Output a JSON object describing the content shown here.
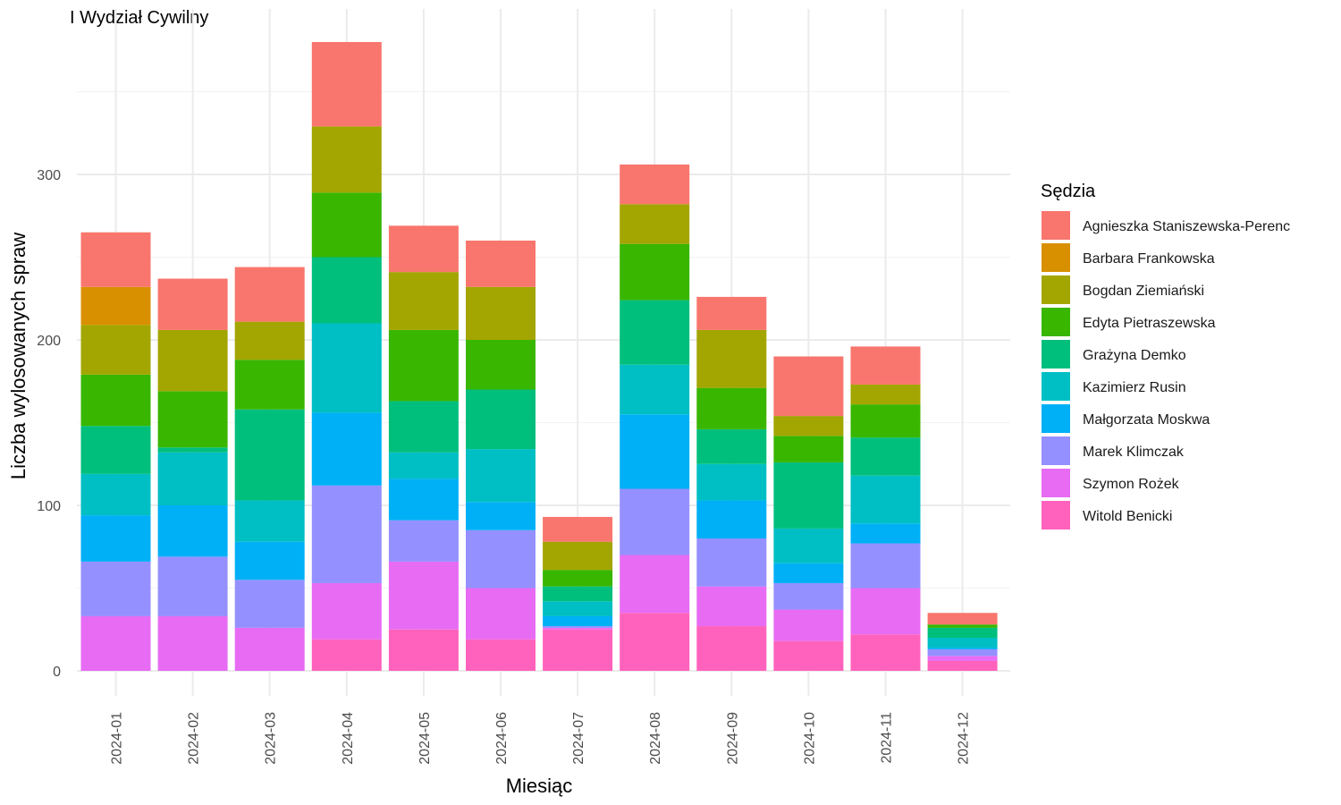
{
  "chart_data": {
    "type": "bar",
    "stacked": true,
    "title": "I Wydział Cywilny",
    "xlabel": "Miesiąc",
    "ylabel": "Liczba wylosowanych spraw",
    "ylim": [
      0,
      380
    ],
    "yticks": [
      0,
      100,
      200,
      300
    ],
    "grid": true,
    "legend": {
      "title": "Sędzia",
      "position": "right"
    },
    "categories": [
      "2024-01",
      "2024-02",
      "2024-03",
      "2024-04",
      "2024-05",
      "2024-06",
      "2024-07",
      "2024-08",
      "2024-09",
      "2024-10",
      "2024-11",
      "2024-12"
    ],
    "series": [
      {
        "name": "Agnieszka Staniszewska-Perenc",
        "color": "#F8766D",
        "values": [
          33,
          31,
          33,
          51,
          28,
          28,
          15,
          24,
          20,
          36,
          23,
          7
        ]
      },
      {
        "name": "Barbara Frankowska",
        "color": "#D89000",
        "values": [
          23,
          0,
          0,
          0,
          0,
          0,
          0,
          0,
          0,
          0,
          0,
          0
        ]
      },
      {
        "name": "Bogdan Ziemiański",
        "color": "#A3A500",
        "values": [
          30,
          37,
          23,
          40,
          35,
          32,
          17,
          24,
          35,
          12,
          12,
          0
        ]
      },
      {
        "name": "Edyta Pietraszewska",
        "color": "#39B600",
        "values": [
          31,
          34,
          30,
          39,
          43,
          30,
          10,
          34,
          25,
          16,
          20,
          2
        ]
      },
      {
        "name": "Grażyna Demko",
        "color": "#00BF7D",
        "values": [
          29,
          3,
          55,
          40,
          31,
          36,
          9,
          39,
          21,
          40,
          23,
          6
        ]
      },
      {
        "name": "Kazimierz Rusin",
        "color": "#00BFC4",
        "values": [
          25,
          32,
          25,
          54,
          16,
          32,
          9,
          30,
          22,
          21,
          29,
          6
        ]
      },
      {
        "name": "Małgorzata Moskwa",
        "color": "#00B0F6",
        "values": [
          28,
          31,
          23,
          44,
          25,
          17,
          6,
          45,
          23,
          12,
          12,
          1
        ]
      },
      {
        "name": "Marek Klimczak",
        "color": "#9590FF",
        "values": [
          33,
          36,
          29,
          59,
          25,
          35,
          1,
          40,
          29,
          16,
          27,
          4
        ]
      },
      {
        "name": "Szymon Rożek",
        "color": "#E76BF3",
        "values": [
          33,
          33,
          26,
          34,
          41,
          31,
          1,
          35,
          24,
          19,
          28,
          3
        ]
      },
      {
        "name": "Witold Benicki",
        "color": "#FF62BC",
        "values": [
          0,
          0,
          0,
          19,
          25,
          19,
          25,
          35,
          27,
          18,
          22,
          6
        ]
      }
    ]
  }
}
